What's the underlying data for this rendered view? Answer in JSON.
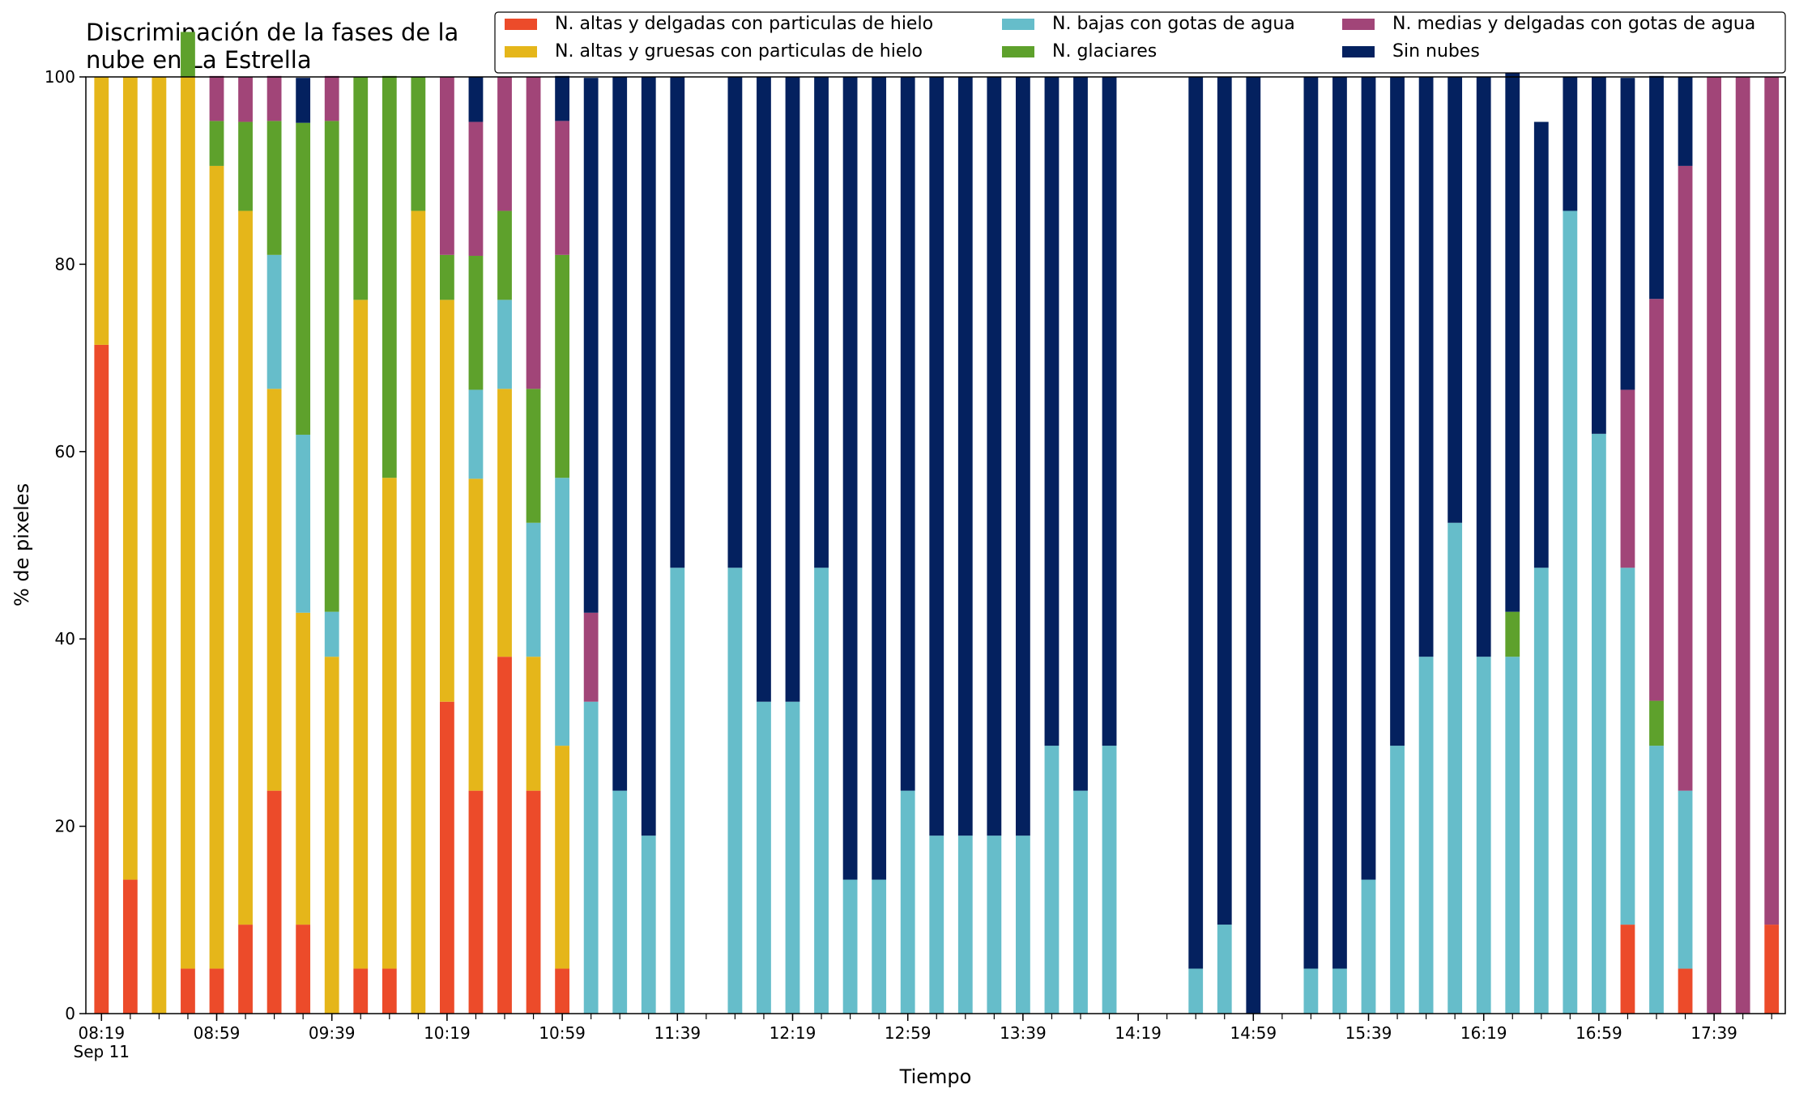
{
  "chart_data": {
    "type": "bar",
    "stacked": true,
    "title_lines": [
      "Discriminación de la fases de la",
      "nube en La Estrella"
    ],
    "xlabel": "Tiempo",
    "ylabel": "% de pixeles",
    "ylim": [
      0,
      100
    ],
    "yticks": [
      "0",
      "20",
      "40",
      "60",
      "80",
      "100"
    ],
    "xtick_labels": [
      "08:19",
      "08:59",
      "09:39",
      "10:19",
      "10:59",
      "11:39",
      "12:19",
      "12:59",
      "13:39",
      "14:19",
      "14:59",
      "15:39",
      "16:19",
      "16:59",
      "17:39"
    ],
    "xtick_date": "Sep 11",
    "x_start": "08:19",
    "x_step_minutes": 10,
    "grid": false,
    "legend_position": "top-right",
    "legend": [
      {
        "name": "N. altas y delgadas con particulas de hielo",
        "color": "#ec4b2a"
      },
      {
        "name": "N. altas y gruesas con particulas de hielo",
        "color": "#e5b61a"
      },
      {
        "name": "N. bajas con gotas de agua",
        "color": "#66bdca"
      },
      {
        "name": "N. glaciares",
        "color": "#5ea12c"
      },
      {
        "name": "N. medias y delgadas con gotas de agua",
        "color": "#a14578"
      },
      {
        "name": "Sin nubes",
        "color": "#04215f"
      }
    ],
    "series": [
      {
        "name": "N. altas y delgadas con particulas de hielo",
        "color": "#ec4b2a",
        "values": [
          71.4,
          14.3,
          0,
          4.8,
          4.8,
          9.5,
          23.8,
          9.5,
          0,
          4.8,
          4.8,
          0,
          33.3,
          23.8,
          38.1,
          23.8,
          4.8,
          0,
          0,
          0,
          0,
          null,
          0,
          0,
          0,
          0,
          0,
          0,
          0,
          0,
          0,
          0,
          0,
          0,
          0,
          0,
          0,
          null,
          0,
          0,
          0,
          null,
          0,
          0,
          0,
          0,
          0,
          0,
          0,
          0,
          0,
          0,
          0,
          9.5,
          0,
          4.8,
          0,
          0,
          9.5
        ]
      },
      {
        "name": "N. altas y gruesas con particulas de hielo",
        "color": "#e5b61a",
        "values": [
          28.6,
          85.7,
          100,
          95.2,
          85.7,
          76.2,
          42.9,
          33.3,
          38.1,
          71.4,
          52.4,
          85.7,
          42.9,
          33.3,
          28.6,
          14.3,
          23.8,
          0,
          0,
          0,
          0,
          null,
          0,
          0,
          0,
          0,
          0,
          0,
          0,
          0,
          0,
          0,
          0,
          0,
          0,
          0,
          0,
          null,
          0,
          0,
          0,
          null,
          0,
          0,
          0,
          0,
          0,
          0,
          0,
          0,
          0,
          0,
          0,
          0,
          0,
          0,
          0,
          0,
          0
        ]
      },
      {
        "name": "N. bajas con gotas de agua",
        "color": "#66bdca",
        "values": [
          0,
          0,
          0,
          0,
          0,
          0,
          14.3,
          19.0,
          4.8,
          0,
          0,
          0,
          0,
          9.5,
          9.5,
          14.3,
          28.6,
          33.3,
          23.8,
          19.0,
          47.6,
          null,
          47.6,
          33.3,
          33.3,
          47.6,
          14.3,
          14.3,
          23.8,
          19.0,
          19.0,
          19.0,
          19.0,
          28.6,
          23.8,
          28.6,
          0,
          null,
          4.8,
          9.5,
          0,
          null,
          4.8,
          4.8,
          14.3,
          28.6,
          38.1,
          52.4,
          38.1,
          38.1,
          47.6,
          85.7,
          61.9,
          38.1,
          28.6,
          19.0,
          0,
          0,
          0
        ]
      },
      {
        "name": "N. glaciares",
        "color": "#5ea12c",
        "values": [
          0,
          0,
          0,
          4.8,
          4.8,
          9.5,
          14.3,
          33.3,
          52.4,
          23.8,
          42.9,
          14.3,
          4.8,
          14.3,
          9.5,
          14.3,
          23.8,
          0,
          0,
          0,
          0,
          null,
          0,
          0,
          0,
          0,
          0,
          0,
          0,
          0,
          0,
          0,
          0,
          0,
          0,
          0,
          0,
          null,
          0,
          0,
          0,
          null,
          0,
          0,
          0,
          0,
          0,
          0,
          0,
          4.8,
          0,
          0,
          0,
          0,
          4.8,
          0,
          0,
          0,
          0
        ]
      },
      {
        "name": "N. medias y delgadas con gotas de agua",
        "color": "#a14578",
        "values": [
          0,
          0,
          0,
          0,
          4.8,
          4.8,
          4.8,
          0,
          4.8,
          0,
          0,
          0,
          19.0,
          14.3,
          14.3,
          33.3,
          14.3,
          9.5,
          0,
          0,
          0,
          null,
          0,
          0,
          0,
          0,
          0,
          0,
          0,
          0,
          0,
          0,
          0,
          0,
          0,
          0,
          0,
          null,
          0,
          0,
          0,
          null,
          0,
          0,
          0,
          0,
          0,
          0,
          0,
          0,
          0,
          0,
          0,
          19.0,
          42.9,
          66.7,
          100,
          100,
          90.5
        ]
      },
      {
        "name": "Sin nubes",
        "color": "#04215f",
        "values": [
          0,
          0,
          0,
          0,
          0,
          0,
          0,
          4.8,
          0,
          0,
          0,
          0,
          0,
          4.8,
          0,
          0,
          4.8,
          57.1,
          76.2,
          81.0,
          52.4,
          null,
          52.4,
          66.7,
          66.7,
          52.4,
          85.7,
          85.7,
          76.2,
          81.0,
          81.0,
          81.0,
          81.0,
          71.4,
          76.2,
          71.4,
          0,
          null,
          95.2,
          90.5,
          100,
          null,
          95.2,
          95.2,
          85.7,
          71.4,
          61.9,
          47.6,
          61.9,
          61.9,
          47.6,
          14.3,
          38.1,
          33.3,
          23.8,
          9.5,
          0,
          0,
          0
        ]
      }
    ]
  }
}
